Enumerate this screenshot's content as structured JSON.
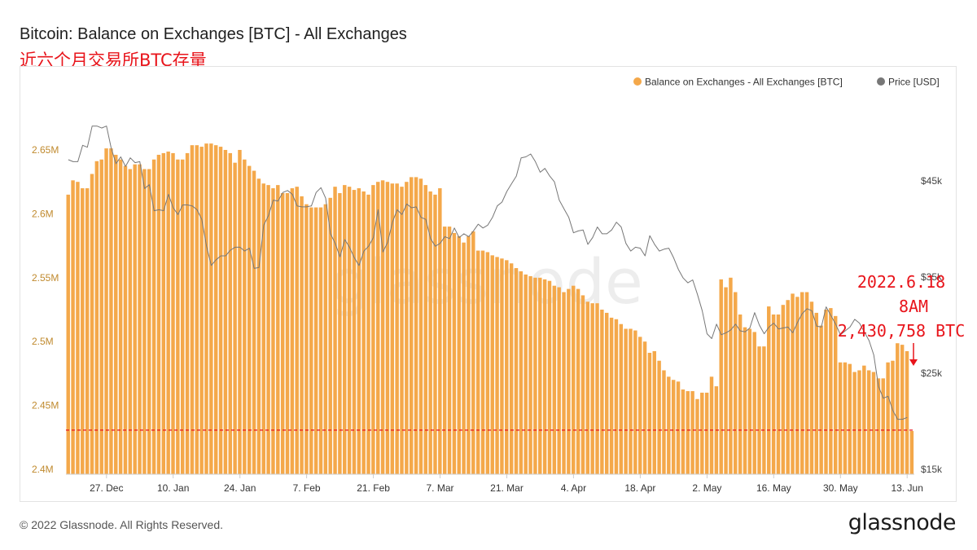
{
  "title": "Bitcoin: Balance on Exchanges [BTC] - All Exchanges",
  "subtitle": "近六个月交易所BTC存量",
  "footer": "© 2022 Glassnode. All Rights Reserved.",
  "logo": "glassnode",
  "watermark": "glassnode",
  "colors": {
    "bar": "#f4a84a",
    "price": "#777777",
    "reference": "#e8141b",
    "annotation": "#e8141b",
    "left_axis_text": "#c08a2e"
  },
  "annotation": {
    "lines": [
      "2022.6.18",
      "8AM",
      "2,430,758 BTC"
    ]
  },
  "chart_data": {
    "type": "bar",
    "legend_position": "top-right",
    "grid": false,
    "series": [
      {
        "name": "Balance on Exchanges - All Exchanges [BTC]",
        "type": "bar",
        "axis": "left",
        "values": [
          2.615,
          2.6262,
          2.625,
          2.62,
          2.62,
          2.6312,
          2.6412,
          2.6425,
          2.6512,
          2.6512,
          2.6462,
          2.6425,
          2.6375,
          2.635,
          2.6387,
          2.6387,
          2.635,
          2.635,
          2.6425,
          2.6462,
          2.6475,
          2.6487,
          2.6475,
          2.6425,
          2.6425,
          2.6475,
          2.6537,
          2.6537,
          2.6525,
          2.655,
          2.655,
          2.6537,
          2.6525,
          2.65,
          2.6475,
          2.64,
          2.65,
          2.6425,
          2.6375,
          2.6337,
          2.6275,
          2.6237,
          2.6225,
          2.62,
          2.6225,
          2.6162,
          2.6162,
          2.62,
          2.6212,
          2.6137,
          2.6075,
          2.605,
          2.605,
          2.605,
          2.6075,
          2.6125,
          2.6212,
          2.6162,
          2.6225,
          2.6212,
          2.6187,
          2.62,
          2.6175,
          2.615,
          2.6225,
          2.625,
          2.6262,
          2.625,
          2.6237,
          2.6237,
          2.6212,
          2.625,
          2.6287,
          2.6287,
          2.6275,
          2.6225,
          2.6175,
          2.615,
          2.62,
          2.59,
          2.59,
          2.585,
          2.5825,
          2.5775,
          2.5825,
          2.5862,
          2.5712,
          2.5712,
          2.57,
          2.5675,
          2.5662,
          2.565,
          2.5637,
          2.5612,
          2.5575,
          2.555,
          2.5525,
          2.5512,
          2.55,
          2.55,
          2.5487,
          2.5475,
          2.5437,
          2.5425,
          2.5387,
          2.5412,
          2.5437,
          2.5412,
          2.5362,
          2.5312,
          2.53,
          2.53,
          2.525,
          2.5225,
          2.5187,
          2.5175,
          2.5137,
          2.51,
          2.51,
          2.5087,
          2.5037,
          2.5,
          2.4912,
          2.4925,
          2.485,
          2.4775,
          2.4725,
          2.47,
          2.4687,
          2.4625,
          2.4612,
          2.4612,
          2.455,
          2.46,
          2.46,
          2.4725,
          2.465,
          2.5487,
          2.5425,
          2.55,
          2.5387,
          2.5212,
          2.5112,
          2.51,
          2.5075,
          2.4962,
          2.4962,
          2.5275,
          2.5212,
          2.5212,
          2.5287,
          2.5325,
          2.5375,
          2.535,
          2.5387,
          2.5387,
          2.5312,
          2.5225,
          2.5125,
          2.525,
          2.5262,
          2.52,
          2.4837,
          2.4837,
          2.4825,
          2.4762,
          2.4775,
          2.4812,
          2.4775,
          2.4762,
          2.4712,
          2.4712,
          2.4837,
          2.485,
          2.4987,
          2.4975,
          2.4925,
          2.43
        ],
        "unit": "BTC (millions)"
      },
      {
        "name": "Price [USD]",
        "type": "line",
        "axis": "right",
        "values": [
          47200,
          47000,
          47000,
          48700,
          48500,
          50700,
          50700,
          50500,
          50700,
          48400,
          46800,
          47500,
          46500,
          47400,
          46900,
          47000,
          44200,
          44600,
          41900,
          42000,
          41900,
          43600,
          42200,
          41500,
          42500,
          42500,
          42400,
          42000,
          41000,
          38200,
          36200,
          36800,
          37200,
          37200,
          37800,
          38100,
          38100,
          37700,
          38000,
          35900,
          36000,
          40400,
          41400,
          43000,
          42900,
          43800,
          44000,
          43600,
          42400,
          42300,
          42300,
          42400,
          43800,
          44300,
          43200,
          39500,
          38500,
          37100,
          38900,
          38100,
          37000,
          36200,
          37700,
          38200,
          39100,
          42000,
          37600,
          38600,
          40700,
          42000,
          41500,
          42600,
          42200,
          42300,
          41200,
          41000,
          39000,
          38200,
          38500,
          39200,
          39000,
          40100,
          39100,
          39500,
          39200,
          39800,
          40500,
          40100,
          40400,
          41200,
          42400,
          42800,
          43900,
          44700,
          45500,
          47400,
          47500,
          47800,
          47000,
          45900,
          46300,
          45500,
          44900,
          43000,
          42100,
          41200,
          39600,
          39800,
          39900,
          38400,
          39100,
          40200,
          39500,
          39500,
          39900,
          40700,
          40200,
          38500,
          37700,
          38100,
          38000,
          37200,
          39300,
          38400,
          37700,
          37900,
          38000,
          37000,
          35800,
          34900,
          34400,
          34700,
          33200,
          31500,
          29100,
          28600,
          30100,
          29000,
          29200,
          29500,
          30100,
          29400,
          29300,
          29700,
          31300,
          30000,
          29100,
          29800,
          30200,
          29600,
          29700,
          29800,
          29200,
          30300,
          31200,
          31700,
          31500,
          29900,
          29800,
          31900,
          31000,
          30100,
          29000,
          29400,
          29800,
          30600,
          30200,
          29300,
          28400,
          26900,
          23600,
          22400,
          22600,
          21100,
          20200,
          20200,
          20400
        ],
        "unit": "USD"
      }
    ],
    "x_ticks": [
      "27. Dec",
      "10. Jan",
      "24. Jan",
      "7. Feb",
      "21. Feb",
      "7. Mar",
      "21. Mar",
      "4. Apr",
      "18. Apr",
      "2. May",
      "16. May",
      "30. May",
      "13. Jun"
    ],
    "y_left": {
      "ticks": [
        "2.4M",
        "2.45M",
        "2.5M",
        "2.55M",
        "2.6M",
        "2.65M"
      ],
      "range": [
        2.4,
        2.68
      ]
    },
    "y_right": {
      "ticks": [
        "$15k",
        "$25k",
        "$35k",
        "$45k"
      ],
      "range": [
        15000,
        52000
      ]
    },
    "reference_line": {
      "value": 2.4307,
      "style": "dashed"
    }
  }
}
